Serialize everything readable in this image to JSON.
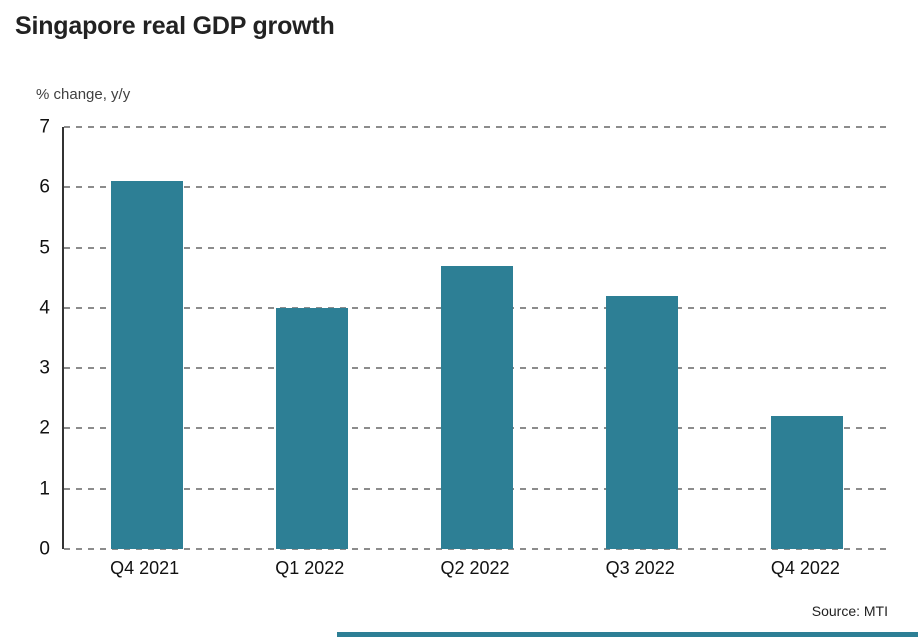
{
  "title": "Singapore real GDP growth",
  "chart_data": {
    "type": "bar",
    "title": "Singapore real GDP growth",
    "unit_label": "% change, y/y",
    "xlabel": "",
    "ylabel": "% change, y/y",
    "categories": [
      "Q4 2021",
      "Q1 2022",
      "Q2 2022",
      "Q3 2022",
      "Q4 2022"
    ],
    "values": [
      6.1,
      4.0,
      4.7,
      4.2,
      2.2
    ],
    "ylim": [
      0,
      7
    ],
    "ytick_step": 1,
    "yticks": [
      0,
      1,
      2,
      3,
      4,
      5,
      6,
      7
    ],
    "grid": "dashed-horizontal",
    "legend": "none",
    "source": "Source: MTI"
  },
  "colors": {
    "bar": "#2d7f95",
    "accent_strip": "#2d7f95",
    "grid": "#8c8c8c",
    "text": "#222222"
  }
}
